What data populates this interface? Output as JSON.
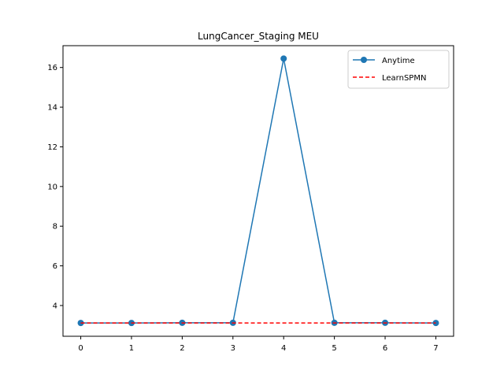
{
  "chart_data": {
    "type": "line",
    "title": "LungCancer_Staging MEU",
    "xlabel": "",
    "ylabel": "",
    "x": [
      0,
      1,
      2,
      3,
      4,
      5,
      6,
      7
    ],
    "xlim": [
      -0.35,
      7.35
    ],
    "ylim": [
      2.45,
      17.1
    ],
    "x_ticks": [
      0,
      1,
      2,
      3,
      4,
      5,
      6,
      7
    ],
    "y_ticks": [
      4,
      6,
      8,
      10,
      12,
      14,
      16
    ],
    "grid": false,
    "legend_position": "top-right",
    "series": [
      {
        "name": "Anytime",
        "color": "#1f77b4",
        "style": "solid",
        "marker": "circle",
        "values": [
          3.12,
          3.12,
          3.13,
          3.13,
          16.45,
          3.13,
          3.13,
          3.12
        ]
      },
      {
        "name": "LearnSPMN",
        "color": "#ff0000",
        "style": "dashed",
        "marker": "none",
        "values": [
          3.12,
          3.12,
          3.12,
          3.12,
          3.12,
          3.12,
          3.12,
          3.12
        ]
      }
    ]
  }
}
